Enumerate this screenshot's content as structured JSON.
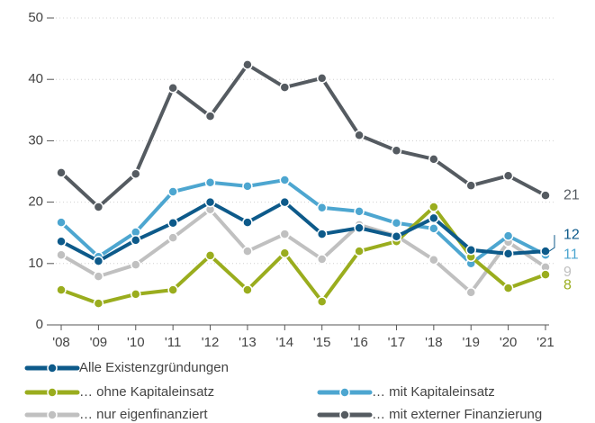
{
  "chart_data": {
    "type": "line",
    "categories": [
      "'08",
      "'09",
      "'10",
      "'11",
      "'12",
      "'13",
      "'14",
      "'15",
      "'16",
      "'17",
      "'18",
      "'19",
      "'20",
      "'21"
    ],
    "ylim": [
      0,
      50
    ],
    "yticks": [
      0,
      10,
      20,
      30,
      40,
      50
    ],
    "grid": true,
    "series": [
      {
        "name": "Alle Existenzgründungen",
        "color": "#0d5a8a",
        "values": [
          13.6,
          10.4,
          13.8,
          16.6,
          20,
          16.7,
          20,
          14.8,
          15.8,
          14.4,
          17.4,
          12.2,
          11.6,
          12
        ],
        "end_label": "12"
      },
      {
        "name": "… ohne Kapitaleinsatz",
        "color": "#9aad1e",
        "values": [
          5.7,
          3.5,
          5,
          5.7,
          11.3,
          5.7,
          11.7,
          3.8,
          12,
          13.6,
          19.2,
          11.1,
          6,
          8.2
        ],
        "end_label": "8"
      },
      {
        "name": "… mit Kapitaleinsatz",
        "color": "#4da6d0",
        "values": [
          16.7,
          11.1,
          15.1,
          21.7,
          23.2,
          22.6,
          23.6,
          19.1,
          18.5,
          16.6,
          15.7,
          10,
          14.5,
          11.4
        ],
        "end_label": "11"
      },
      {
        "name": "… nur eigenfinanziert",
        "color": "#c0c0c0",
        "values": [
          11.4,
          7.9,
          9.8,
          14.2,
          18.8,
          12,
          14.8,
          10.7,
          16.3,
          14.5,
          10.6,
          5.3,
          13.5,
          9.4
        ],
        "end_label": "9"
      },
      {
        "name": "… mit externer Finanzierung",
        "color": "#555b61",
        "values": [
          24.8,
          19.2,
          24.6,
          38.6,
          34,
          42.4,
          38.7,
          40.2,
          30.9,
          28.4,
          27,
          22.7,
          24.3,
          21.1
        ],
        "end_label": "21"
      }
    ]
  }
}
